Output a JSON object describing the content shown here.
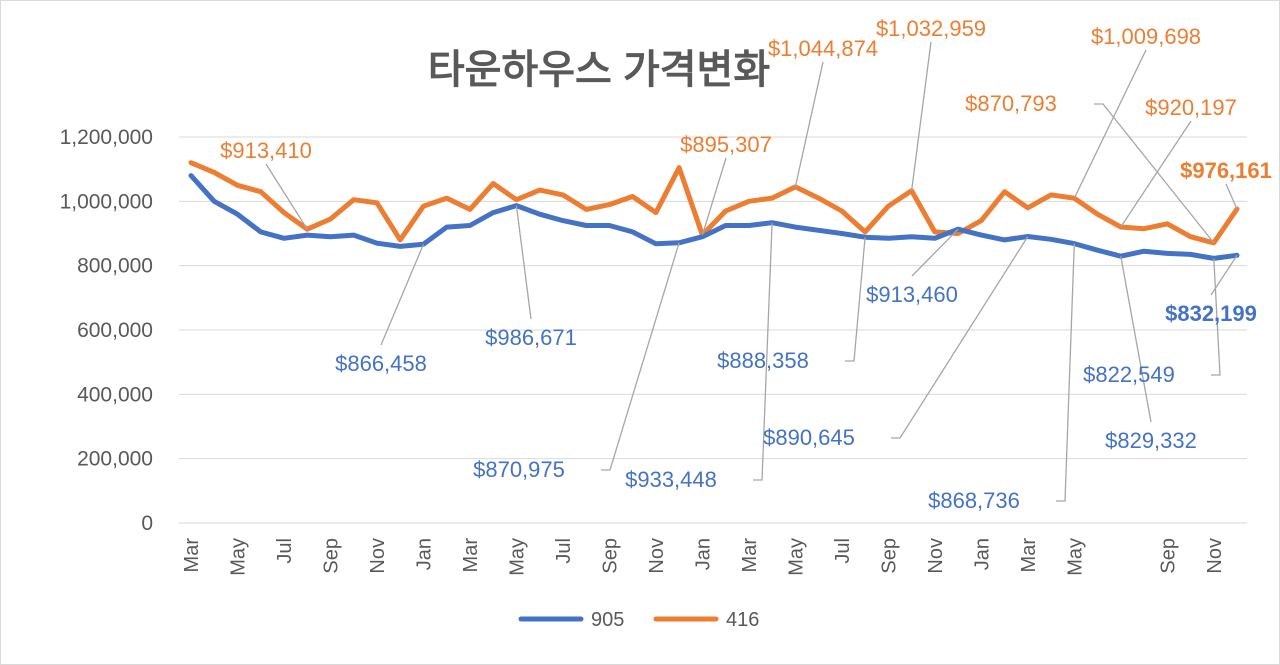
{
  "chart_data": {
    "type": "line",
    "title": "타운하우스 가격변화",
    "xlabel": "",
    "ylabel": "",
    "ylim": [
      0,
      1200000
    ],
    "yticks": [
      "0",
      "200,000",
      "400,000",
      "600,000",
      "800,000",
      "1,000,000",
      "1,200,000"
    ],
    "grid": true,
    "legend": "bottom",
    "x_tick_labels": [
      {
        "index": 0,
        "label": "Mar"
      },
      {
        "index": 2,
        "label": "May"
      },
      {
        "index": 4,
        "label": "Jul"
      },
      {
        "index": 6,
        "label": "Sep"
      },
      {
        "index": 8,
        "label": "Nov"
      },
      {
        "index": 10,
        "label": "Jan"
      },
      {
        "index": 12,
        "label": "Mar"
      },
      {
        "index": 14,
        "label": "May"
      },
      {
        "index": 16,
        "label": "Jul"
      },
      {
        "index": 18,
        "label": "Sep"
      },
      {
        "index": 20,
        "label": "Nov"
      },
      {
        "index": 22,
        "label": "Jan"
      },
      {
        "index": 24,
        "label": "Mar"
      },
      {
        "index": 26,
        "label": "May"
      },
      {
        "index": 28,
        "label": "Jul"
      },
      {
        "index": 30,
        "label": "Sep"
      },
      {
        "index": 32,
        "label": "Nov"
      },
      {
        "index": 34,
        "label": "Jan"
      },
      {
        "index": 36,
        "label": "Mar"
      },
      {
        "index": 38,
        "label": "May"
      },
      {
        "index": 42,
        "label": "Sep"
      },
      {
        "index": 44,
        "label": "Nov"
      }
    ],
    "series": [
      {
        "name": "905",
        "color": "#4472c4",
        "values": [
          1080000,
          1000000,
          960000,
          905000,
          885000,
          895000,
          890000,
          895000,
          870000,
          860000,
          866458,
          920000,
          925000,
          965000,
          986671,
          960000,
          940000,
          925000,
          925000,
          905000,
          868000,
          870975,
          890000,
          925000,
          925000,
          933448,
          920000,
          910000,
          900000,
          888358,
          885000,
          890000,
          885000,
          913460,
          895000,
          880000,
          890645,
          882000,
          868736,
          848000,
          829332,
          845000,
          838000,
          835000,
          822549,
          832199
        ]
      },
      {
        "name": "416",
        "color": "#ed7d31",
        "values": [
          1120000,
          1090000,
          1050000,
          1030000,
          965000,
          913410,
          945000,
          1005000,
          995000,
          880000,
          985000,
          1010000,
          975000,
          1055000,
          1005000,
          1035000,
          1020000,
          975000,
          990000,
          1015000,
          965000,
          1105000,
          895307,
          970000,
          1000000,
          1010000,
          1044874,
          1010000,
          970000,
          905000,
          985000,
          1032959,
          905000,
          900000,
          940000,
          1030000,
          980000,
          1020000,
          1009698,
          960000,
          920197,
          915000,
          930000,
          890000,
          870793,
          976161
        ]
      }
    ],
    "annotations": [
      {
        "series": 1,
        "index": 5,
        "text": "$913,410",
        "bold": false
      },
      {
        "series": 1,
        "index": 22,
        "text": "$895,307",
        "bold": false
      },
      {
        "series": 1,
        "index": 26,
        "text": "$1,044,874",
        "bold": false
      },
      {
        "series": 1,
        "index": 31,
        "text": "$1,032,959",
        "bold": false
      },
      {
        "series": 1,
        "index": 38,
        "text": "$1,009,698",
        "bold": false
      },
      {
        "series": 1,
        "index": 44,
        "text": "$870,793",
        "bold": false
      },
      {
        "series": 1,
        "index": 40,
        "text": "$920,197",
        "bold": false
      },
      {
        "series": 1,
        "index": 45,
        "text": "$976,161",
        "bold": true
      },
      {
        "series": 0,
        "index": 10,
        "text": "$866,458",
        "bold": false
      },
      {
        "series": 0,
        "index": 14,
        "text": "$986,671",
        "bold": false
      },
      {
        "series": 0,
        "index": 21,
        "text": "$870,975",
        "bold": false
      },
      {
        "series": 0,
        "index": 25,
        "text": "$933,448",
        "bold": false
      },
      {
        "series": 0,
        "index": 29,
        "text": "$888,358",
        "bold": false
      },
      {
        "series": 0,
        "index": 33,
        "text": "$913,460",
        "bold": false
      },
      {
        "series": 0,
        "index": 36,
        "text": "$890,645",
        "bold": false
      },
      {
        "series": 0,
        "index": 38,
        "text": "$868,736",
        "bold": false
      },
      {
        "series": 0,
        "index": 40,
        "text": "$829,332",
        "bold": false
      },
      {
        "series": 0,
        "index": 44,
        "text": "$822,549",
        "bold": false
      },
      {
        "series": 0,
        "index": 45,
        "text": "$832,199",
        "bold": true
      }
    ]
  }
}
